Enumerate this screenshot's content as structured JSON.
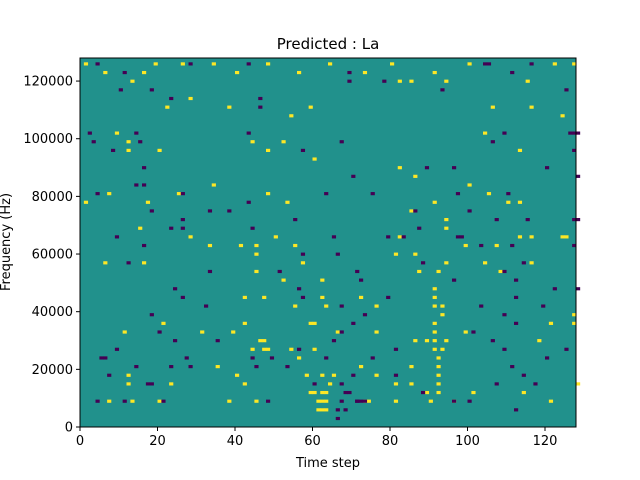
{
  "chart_data": {
    "type": "heatmap",
    "title": "Predicted : La",
    "xlabel": "Time step",
    "ylabel": "Frequency (Hz)",
    "xlim": [
      0,
      128
    ],
    "ylim": [
      0,
      128000
    ],
    "x_ticks": [
      0,
      20,
      40,
      60,
      80,
      100,
      120
    ],
    "y_ticks": [
      0,
      20000,
      40000,
      60000,
      80000,
      100000,
      120000
    ],
    "grid": false,
    "colormap": "viridis",
    "value_range": [
      -1,
      1
    ],
    "colors": {
      "background": "#21918c",
      "high": "#fde725",
      "low": "#440154"
    },
    "cells": {
      "high": [
        [
          1,
          125500
        ],
        [
          6,
          122500
        ],
        [
          19,
          125500
        ],
        [
          26,
          125500
        ],
        [
          34,
          125500
        ],
        [
          48,
          125500
        ],
        [
          64,
          125500
        ],
        [
          80,
          125500
        ],
        [
          100,
          125500
        ],
        [
          122,
          125500
        ],
        [
          13,
          119500
        ],
        [
          16,
          122500
        ],
        [
          91,
          122500
        ],
        [
          73,
          122500
        ],
        [
          82,
          119500
        ],
        [
          85,
          119500
        ],
        [
          94,
          119500
        ],
        [
          115,
          119500
        ],
        [
          28,
          113500
        ],
        [
          38,
          110500
        ],
        [
          22,
          110500
        ],
        [
          54,
          107500
        ],
        [
          59,
          110500
        ],
        [
          106,
          110500
        ],
        [
          116,
          110500
        ],
        [
          124,
          107500
        ],
        [
          9,
          101500
        ],
        [
          12,
          98500
        ],
        [
          12,
          95500
        ],
        [
          20,
          95500
        ],
        [
          44,
          98500
        ],
        [
          48,
          95500
        ],
        [
          52,
          98500
        ],
        [
          60,
          92500
        ],
        [
          104,
          101500
        ],
        [
          113,
          95500
        ],
        [
          82,
          89500
        ],
        [
          86,
          86500
        ],
        [
          100,
          83500
        ],
        [
          1,
          77500
        ],
        [
          7,
          80500
        ],
        [
          17,
          77500
        ],
        [
          25,
          80500
        ],
        [
          34,
          83500
        ],
        [
          48,
          80500
        ],
        [
          53,
          77500
        ],
        [
          85,
          74500
        ],
        [
          91,
          77500
        ],
        [
          105,
          80500
        ],
        [
          110,
          77500
        ],
        [
          113,
          77500
        ],
        [
          15,
          68500
        ],
        [
          28,
          65500
        ],
        [
          33,
          62500
        ],
        [
          41,
          62500
        ],
        [
          45,
          62500
        ],
        [
          50,
          65500
        ],
        [
          55,
          62500
        ],
        [
          82,
          65500
        ],
        [
          86,
          59500
        ],
        [
          99,
          62500
        ],
        [
          107,
          62500
        ],
        [
          113,
          65500
        ],
        [
          116,
          65500
        ],
        [
          125,
          65500
        ],
        [
          6,
          56500
        ],
        [
          16,
          56500
        ],
        [
          45,
          59500
        ],
        [
          45,
          53500
        ],
        [
          52,
          50500
        ],
        [
          57,
          56500
        ],
        [
          62,
          50500
        ],
        [
          81,
          59500
        ],
        [
          87,
          53500
        ],
        [
          92,
          53500
        ],
        [
          104,
          56500
        ],
        [
          108,
          53500
        ],
        [
          116,
          56500
        ],
        [
          42,
          44500
        ],
        [
          47,
          44500
        ],
        [
          55,
          41500
        ],
        [
          62,
          44500
        ],
        [
          63,
          41500
        ],
        [
          72,
          44500
        ],
        [
          76,
          41500
        ],
        [
          91,
          47500
        ],
        [
          91,
          44500
        ],
        [
          91,
          41500
        ],
        [
          93,
          41500
        ],
        [
          93,
          38500
        ],
        [
          91,
          35500
        ],
        [
          91,
          32500
        ],
        [
          91,
          29500
        ],
        [
          91,
          26500
        ],
        [
          89,
          29500
        ],
        [
          93,
          26500
        ],
        [
          92,
          23500
        ],
        [
          92,
          20500
        ],
        [
          92,
          17500
        ],
        [
          92,
          14500
        ],
        [
          11,
          32500
        ],
        [
          21,
          35500
        ],
        [
          31,
          32500
        ],
        [
          39,
          32500
        ],
        [
          46,
          29500
        ],
        [
          54,
          26500
        ],
        [
          66,
          32500
        ],
        [
          76,
          32500
        ],
        [
          86,
          29500
        ],
        [
          94,
          29500
        ],
        [
          118,
          29500
        ],
        [
          121,
          35500
        ],
        [
          12,
          17500
        ],
        [
          12,
          14500
        ],
        [
          23,
          14500
        ],
        [
          35,
          20500
        ],
        [
          40,
          17500
        ],
        [
          42,
          14500
        ],
        [
          58,
          17500
        ],
        [
          62,
          17500
        ],
        [
          64,
          14500
        ],
        [
          65,
          17500
        ],
        [
          72,
          20500
        ],
        [
          76,
          17500
        ],
        [
          81,
          14500
        ],
        [
          85,
          20500
        ],
        [
          85,
          14500
        ],
        [
          89,
          11500
        ],
        [
          92,
          11500
        ],
        [
          114,
          11500
        ],
        [
          128,
          14500
        ],
        [
          7,
          8500
        ],
        [
          13,
          8500
        ],
        [
          20,
          8500
        ],
        [
          38,
          8500
        ],
        [
          45,
          8500
        ],
        [
          59,
          11500
        ],
        [
          60,
          11500
        ],
        [
          61,
          8500
        ],
        [
          61,
          5500
        ],
        [
          62,
          11500
        ],
        [
          62,
          8500
        ],
        [
          62,
          5500
        ],
        [
          63,
          5500
        ],
        [
          63,
          8500
        ],
        [
          63,
          11500
        ],
        [
          73,
          8500
        ],
        [
          74,
          8500
        ],
        [
          81,
          8500
        ],
        [
          90,
          8500
        ],
        [
          96,
          8500
        ],
        [
          101,
          11500
        ],
        [
          121,
          8500
        ],
        [
          127,
          38500
        ],
        [
          127,
          35500
        ],
        [
          42,
          35500
        ],
        [
          44,
          26500
        ],
        [
          48,
          26500
        ],
        [
          56,
          23500
        ],
        [
          60,
          26500
        ],
        [
          99,
          32500
        ],
        [
          47,
          26500
        ],
        [
          47,
          29500
        ],
        [
          59,
          35500
        ],
        [
          60,
          35500
        ],
        [
          94,
          56500
        ],
        [
          94,
          71500
        ],
        [
          94,
          68500
        ],
        [
          124,
          65500
        ],
        [
          56,
          122500
        ],
        [
          127,
          125500
        ],
        [
          40,
          122500
        ]
      ],
      "low": [
        [
          4,
          125500
        ],
        [
          28,
          125500
        ],
        [
          43,
          125500
        ],
        [
          104,
          125500
        ],
        [
          105,
          125500
        ],
        [
          116,
          125500
        ],
        [
          11,
          122500
        ],
        [
          69,
          122500
        ],
        [
          69,
          119500
        ],
        [
          78,
          119500
        ],
        [
          111,
          122500
        ],
        [
          10,
          116500
        ],
        [
          18,
          116500
        ],
        [
          23,
          113500
        ],
        [
          46,
          113500
        ],
        [
          46,
          110500
        ],
        [
          93,
          116500
        ],
        [
          125,
          116500
        ],
        [
          2,
          101500
        ],
        [
          3,
          98500
        ],
        [
          127,
          101500
        ],
        [
          128,
          101500
        ],
        [
          8,
          95500
        ],
        [
          14,
          101500
        ],
        [
          15,
          98500
        ],
        [
          16,
          89500
        ],
        [
          43,
          101500
        ],
        [
          57,
          95500
        ],
        [
          67,
          98500
        ],
        [
          89,
          89500
        ],
        [
          96,
          89500
        ],
        [
          106,
          98500
        ],
        [
          109,
          101500
        ],
        [
          120,
          89500
        ],
        [
          126,
          101500
        ],
        [
          4,
          80500
        ],
        [
          14,
          83500
        ],
        [
          16,
          83500
        ],
        [
          18,
          74500
        ],
        [
          26,
          80500
        ],
        [
          26,
          68500
        ],
        [
          33,
          74500
        ],
        [
          38,
          74500
        ],
        [
          43,
          77500
        ],
        [
          55,
          71500
        ],
        [
          63,
          80500
        ],
        [
          70,
          86500
        ],
        [
          75,
          80500
        ],
        [
          87,
          68500
        ],
        [
          97,
          80500
        ],
        [
          100,
          74500
        ],
        [
          107,
          71500
        ],
        [
          110,
          80500
        ],
        [
          115,
          71500
        ],
        [
          127,
          71500
        ],
        [
          128,
          71500
        ],
        [
          9,
          65500
        ],
        [
          16,
          62500
        ],
        [
          23,
          68500
        ],
        [
          26,
          71500
        ],
        [
          44,
          68500
        ],
        [
          65,
          65500
        ],
        [
          66,
          59500
        ],
        [
          79,
          65500
        ],
        [
          97,
          65500
        ],
        [
          98,
          65500
        ],
        [
          103,
          62500
        ],
        [
          111,
          62500
        ],
        [
          127,
          62500
        ],
        [
          12,
          56500
        ],
        [
          33,
          53500
        ],
        [
          51,
          53500
        ],
        [
          57,
          59500
        ],
        [
          71,
          53500
        ],
        [
          72,
          50500
        ],
        [
          88,
          56500
        ],
        [
          96,
          50500
        ],
        [
          109,
          53500
        ],
        [
          112,
          50500
        ],
        [
          112,
          44500
        ],
        [
          114,
          56500
        ],
        [
          122,
          47500
        ],
        [
          128,
          47500
        ],
        [
          24,
          47500
        ],
        [
          26,
          44500
        ],
        [
          32,
          41500
        ],
        [
          56,
          47500
        ],
        [
          57,
          44500
        ],
        [
          67,
          41500
        ],
        [
          70,
          35500
        ],
        [
          73,
          38500
        ],
        [
          79,
          44500
        ],
        [
          103,
          41500
        ],
        [
          109,
          38500
        ],
        [
          112,
          35500
        ],
        [
          119,
          41500
        ],
        [
          18,
          38500
        ],
        [
          20,
          32500
        ],
        [
          24,
          29500
        ],
        [
          5,
          23500
        ],
        [
          6,
          23500
        ],
        [
          9,
          26500
        ],
        [
          14,
          20500
        ],
        [
          23,
          20500
        ],
        [
          27,
          23500
        ],
        [
          35,
          29500
        ],
        [
          44,
          23500
        ],
        [
          49,
          23500
        ],
        [
          56,
          26500
        ],
        [
          63,
          23500
        ],
        [
          65,
          29500
        ],
        [
          67,
          32500
        ],
        [
          75,
          23500
        ],
        [
          81,
          26500
        ],
        [
          101,
          32500
        ],
        [
          106,
          29500
        ],
        [
          109,
          26500
        ],
        [
          111,
          20500
        ],
        [
          120,
          23500
        ],
        [
          125,
          26500
        ],
        [
          7,
          17500
        ],
        [
          17,
          14500
        ],
        [
          18,
          14500
        ],
        [
          28,
          20500
        ],
        [
          45,
          20500
        ],
        [
          53,
          20500
        ],
        [
          60,
          14500
        ],
        [
          67,
          14500
        ],
        [
          68,
          11500
        ],
        [
          70,
          17500
        ],
        [
          81,
          17500
        ],
        [
          88,
          11500
        ],
        [
          107,
          14500
        ],
        [
          114,
          17500
        ],
        [
          117,
          14500
        ],
        [
          4,
          8500
        ],
        [
          11,
          8500
        ],
        [
          21,
          8500
        ],
        [
          48,
          8500
        ],
        [
          67,
          8500
        ],
        [
          69,
          11500
        ],
        [
          71,
          8500
        ],
        [
          71,
          8500
        ],
        [
          72,
          8500
        ],
        [
          73,
          8500
        ],
        [
          66,
          5500
        ],
        [
          66,
          2500
        ],
        [
          68,
          5500
        ],
        [
          96,
          8500
        ],
        [
          100,
          8500
        ],
        [
          112,
          5500
        ],
        [
          86,
          74500
        ],
        [
          83,
          65500
        ],
        [
          128,
          86500
        ],
        [
          127,
          95500
        ]
      ]
    }
  }
}
